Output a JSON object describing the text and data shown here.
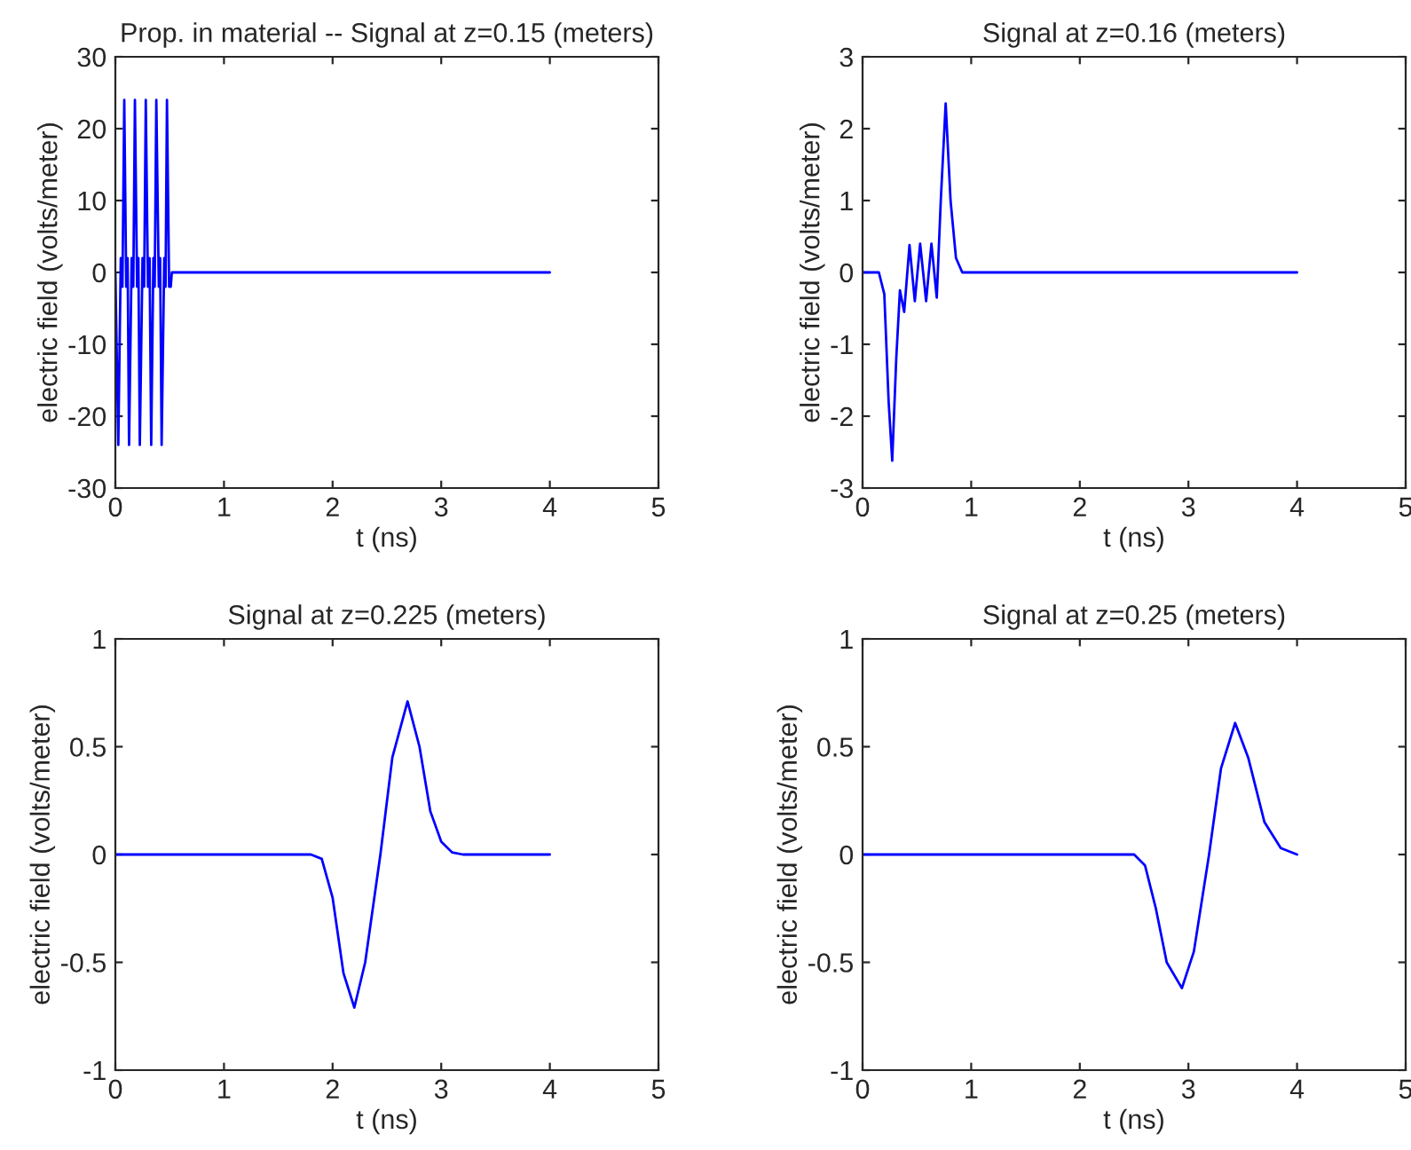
{
  "chart_data": [
    {
      "type": "line",
      "title": "Prop. in material -- Signal at z=0.15 (meters)",
      "xlabel": "t (ns)",
      "ylabel": "electric field (volts/meter)",
      "xlim": [
        0,
        5
      ],
      "ylim": [
        -30,
        30
      ],
      "xticks": [
        0,
        1,
        2,
        3,
        4,
        5
      ],
      "yticks": [
        -30,
        -20,
        -10,
        0,
        10,
        20,
        30
      ],
      "series": [
        {
          "color": "#0000ff",
          "x": [
            0,
            0.027,
            0.05,
            0.065,
            0.082,
            0.1,
            0.113,
            0.126,
            0.15,
            0.165,
            0.18,
            0.2,
            0.212,
            0.225,
            0.25,
            0.265,
            0.28,
            0.3,
            0.315,
            0.33,
            0.35,
            0.362,
            0.377,
            0.4,
            0.412,
            0.426,
            0.45,
            0.462,
            0.475,
            0.495,
            0.51,
            0.52,
            4
          ],
          "values": [
            0,
            -24,
            2,
            -2,
            24,
            -2,
            2,
            -24,
            2,
            -2,
            24,
            -2,
            2,
            -24,
            2,
            -2,
            24,
            -2,
            2,
            -24,
            2,
            -2,
            24,
            -2,
            2,
            -24,
            2,
            -2,
            24,
            -2,
            -2,
            0,
            0
          ]
        }
      ]
    },
    {
      "type": "line",
      "title": "Signal at z=0.16 (meters)",
      "xlabel": "t (ns)",
      "ylabel": "electric field (volts/meter)",
      "xlim": [
        0,
        5
      ],
      "ylim": [
        -3,
        3
      ],
      "xticks": [
        0,
        1,
        2,
        3,
        4,
        5
      ],
      "yticks": [
        -3,
        -2,
        -1,
        0,
        1,
        2,
        3
      ],
      "series": [
        {
          "color": "#0000ff",
          "x": [
            0,
            0.15,
            0.2,
            0.24,
            0.273,
            0.31,
            0.344,
            0.383,
            0.432,
            0.481,
            0.53,
            0.585,
            0.634,
            0.683,
            0.72,
            0.765,
            0.81,
            0.86,
            0.918,
            4
          ],
          "values": [
            0,
            0,
            -0.3,
            -1.8,
            -2.62,
            -1.2,
            -0.25,
            -0.55,
            0.38,
            -0.4,
            0.4,
            -0.4,
            0.4,
            -0.35,
            1.0,
            2.35,
            1.0,
            0.2,
            0,
            0
          ]
        }
      ]
    },
    {
      "type": "line",
      "title": "Signal at z=0.225 (meters)",
      "xlabel": "t (ns)",
      "ylabel": "electric field (volts/meter)",
      "xlim": [
        0,
        5
      ],
      "ylim": [
        -1,
        1
      ],
      "xticks": [
        0,
        1,
        2,
        3,
        4,
        5
      ],
      "yticks": [
        -1,
        -0.5,
        0,
        0.5,
        1
      ],
      "series": [
        {
          "color": "#0000ff",
          "x": [
            0,
            1.8,
            1.9,
            2.0,
            2.1,
            2.2,
            2.3,
            2.44,
            2.55,
            2.69,
            2.8,
            2.9,
            3.0,
            3.1,
            3.2,
            4
          ],
          "values": [
            0,
            0,
            -0.02,
            -0.2,
            -0.55,
            -0.71,
            -0.5,
            0,
            0.45,
            0.71,
            0.5,
            0.2,
            0.06,
            0.01,
            0,
            0
          ]
        }
      ]
    },
    {
      "type": "line",
      "title": "Signal at z=0.25 (meters)",
      "xlabel": "t (ns)",
      "ylabel": "electric field (volts/meter)",
      "xlim": [
        0,
        5
      ],
      "ylim": [
        -1,
        1
      ],
      "xticks": [
        0,
        1,
        2,
        3,
        4,
        5
      ],
      "yticks": [
        -1,
        -0.5,
        0,
        0.5,
        1
      ],
      "series": [
        {
          "color": "#0000ff",
          "x": [
            0,
            2.5,
            2.6,
            2.7,
            2.8,
            2.94,
            3.05,
            3.19,
            3.3,
            3.43,
            3.55,
            3.7,
            3.85,
            4
          ],
          "values": [
            0,
            0,
            -0.05,
            -0.25,
            -0.5,
            -0.62,
            -0.45,
            0,
            0.4,
            0.61,
            0.45,
            0.15,
            0.03,
            0
          ]
        }
      ]
    }
  ]
}
